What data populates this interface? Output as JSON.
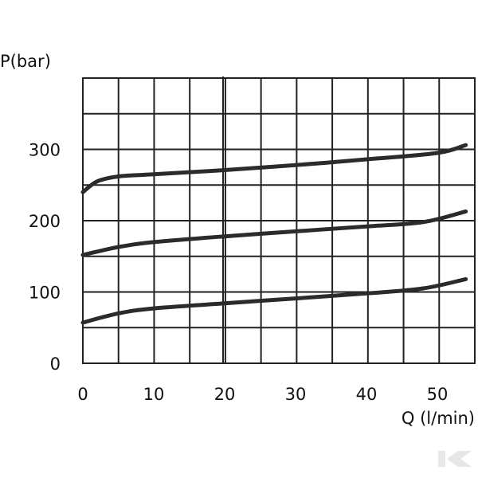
{
  "chart_data": {
    "type": "line",
    "xlabel": "Q (l/min)",
    "ylabel": "P(bar)",
    "xlim": [
      0,
      55
    ],
    "ylim": [
      0,
      400
    ],
    "x_ticks": [
      "0",
      "10",
      "20",
      "30",
      "40",
      "50"
    ],
    "y_ticks": [
      "0",
      "100",
      "200",
      "300"
    ],
    "grid": true,
    "series": [
      {
        "x": [
          0,
          2,
          5,
          10,
          20,
          30,
          40,
          50,
          54
        ],
        "values": [
          240,
          255,
          262,
          265,
          271,
          278,
          286,
          295,
          306
        ]
      },
      {
        "x": [
          0,
          5,
          10,
          20,
          30,
          40,
          48,
          54
        ],
        "values": [
          152,
          163,
          170,
          178,
          185,
          192,
          198,
          213
        ]
      },
      {
        "x": [
          0,
          5,
          10,
          20,
          30,
          40,
          48,
          54
        ],
        "values": [
          57,
          70,
          77,
          84,
          91,
          98,
          105,
          118
        ]
      }
    ]
  },
  "watermark": {
    "icon": "k-logo-icon",
    "color": "#e7e7e7"
  }
}
